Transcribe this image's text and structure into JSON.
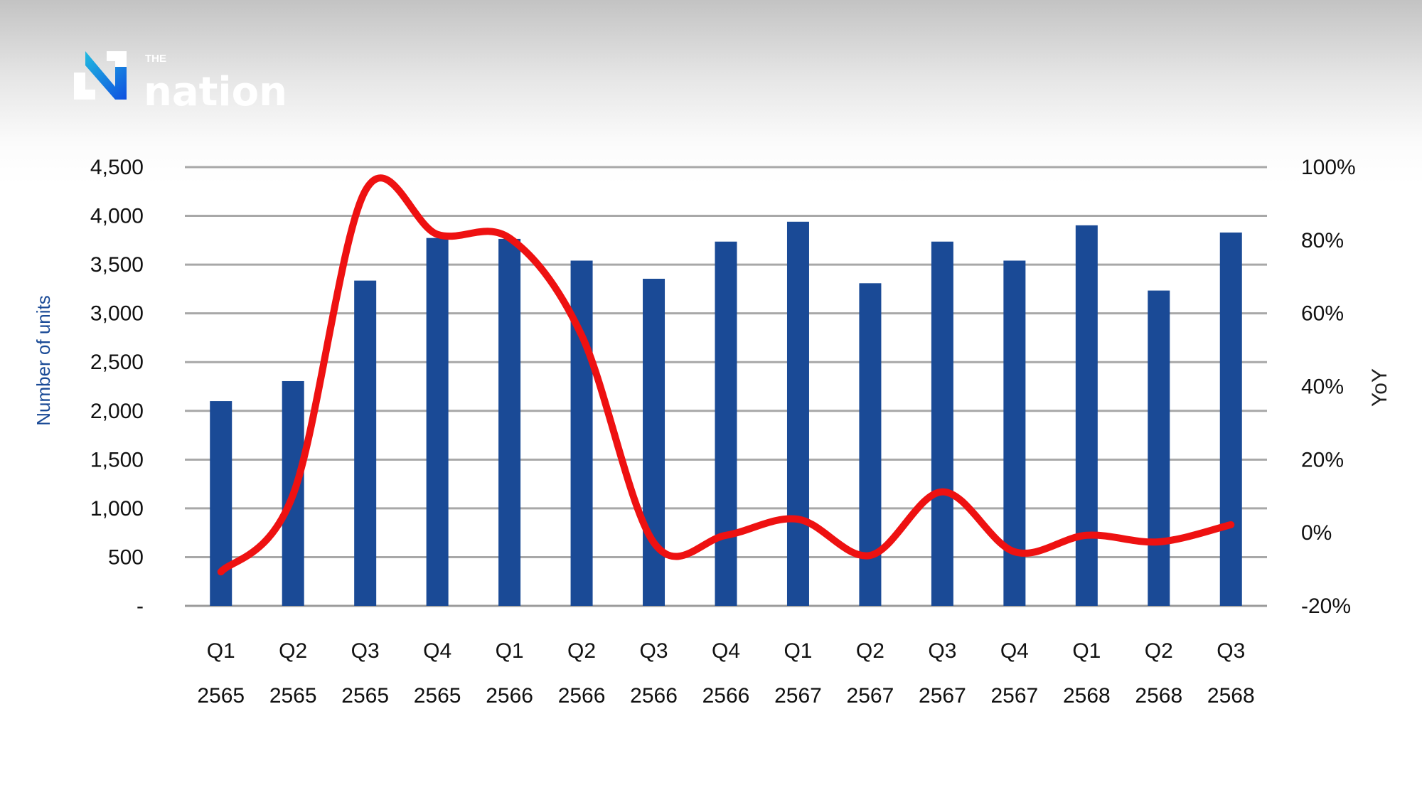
{
  "logo": {
    "text_small": "THE",
    "text_main": "nation"
  },
  "chart_data": {
    "type": "bar+line",
    "categories": [
      [
        "Q1",
        "2565"
      ],
      [
        "Q2",
        "2565"
      ],
      [
        "Q3",
        "2565"
      ],
      [
        "Q4",
        "2565"
      ],
      [
        "Q1",
        "2566"
      ],
      [
        "Q2",
        "2566"
      ],
      [
        "Q3",
        "2566"
      ],
      [
        "Q4",
        "2566"
      ],
      [
        "Q1",
        "2567"
      ],
      [
        "Q2",
        "2567"
      ],
      [
        "Q3",
        "2567"
      ],
      [
        "Q4",
        "2567"
      ],
      [
        "Q1",
        "2568"
      ],
      [
        "Q2",
        "2568"
      ],
      [
        "Q3",
        "2568"
      ]
    ],
    "bar_series": {
      "values": [
        2100,
        2305,
        3336,
        3773,
        3764,
        3541,
        3355,
        3736,
        3940,
        3309,
        3736,
        3541,
        3903,
        3234,
        3829
      ],
      "color": "#1a4a96",
      "axis": "left"
    },
    "line_series": {
      "values": [
        -10.7,
        10.4,
        93.5,
        81.6,
        80.6,
        54,
        -2.7,
        -0.7,
        3.7,
        -6.2,
        11.2,
        -5.2,
        -0.7,
        -2.5,
        2.2
      ],
      "color": "#ee1111",
      "axis": "right",
      "smooth": true
    },
    "ylabel_left": "Number of units",
    "ylabel_right": "YoY",
    "ylim_left": [
      0,
      4500
    ],
    "ylim_right": [
      -20,
      100
    ],
    "yticks_left": [
      "-",
      "500",
      "1,000",
      "1,500",
      "2,000",
      "2,500",
      "3,000",
      "3,500",
      "4,000",
      "4,500"
    ],
    "yticks_right": [
      "-20%",
      "0%",
      "20%",
      "40%",
      "60%",
      "80%",
      "100%"
    ],
    "grid": true,
    "legend": "none"
  }
}
